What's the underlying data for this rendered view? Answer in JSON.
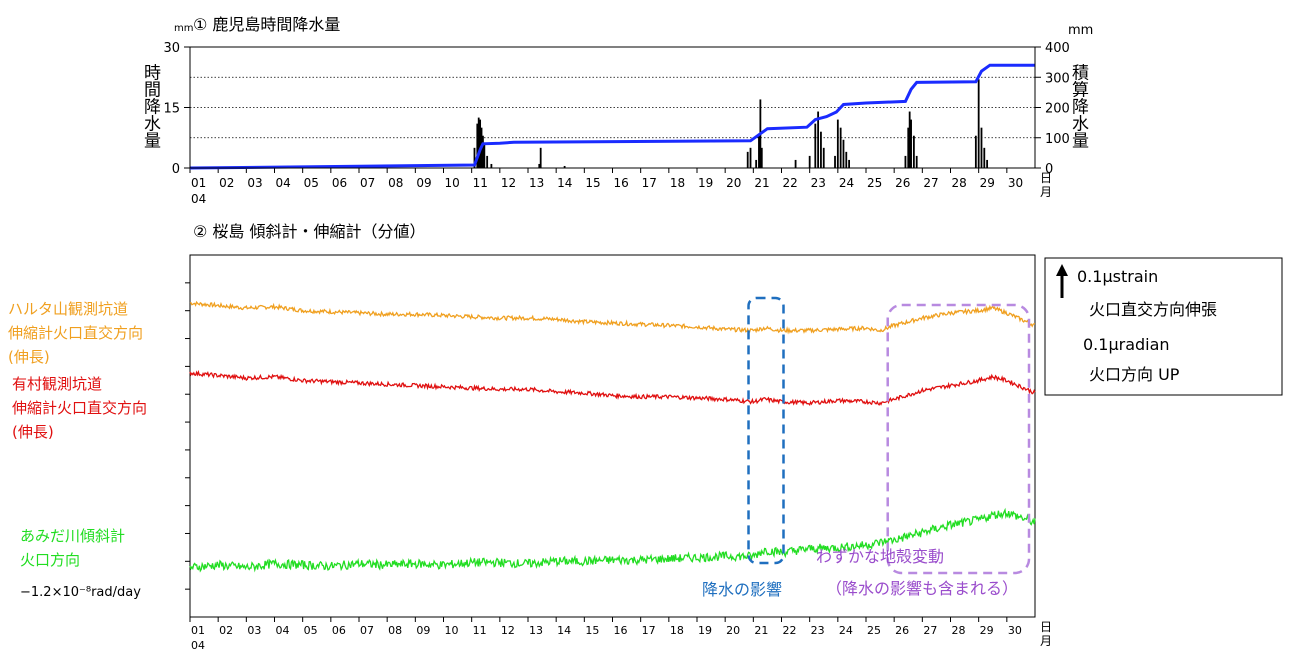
{
  "chart_data": [
    {
      "type": "bar+line",
      "title": "① 鹿児島時間降水量",
      "ylabel_left": "時間降水量",
      "ylabel_right": "積算降水量",
      "unit_left": "mm",
      "unit_right": "mm",
      "ylim_left": [
        0,
        30
      ],
      "ylim_right": [
        0,
        400
      ],
      "yticks_left": [
        0,
        15,
        30
      ],
      "yticks_right": [
        0,
        100,
        200,
        300,
        400
      ],
      "grid": "dotted at 100, 200, 300 (right axis)",
      "x_ticks": [
        "01",
        "02",
        "03",
        "04",
        "05",
        "06",
        "07",
        "08",
        "09",
        "10",
        "11",
        "12",
        "13",
        "14",
        "15",
        "16",
        "17",
        "18",
        "19",
        "20",
        "21",
        "22",
        "23",
        "24",
        "25",
        "26",
        "27",
        "28",
        "29",
        "30"
      ],
      "x_month": "04",
      "x_unit": "日\n月",
      "hourly_bars": [
        {
          "day": 11.1,
          "value": 5
        },
        {
          "day": 11.2,
          "value": 11
        },
        {
          "day": 11.25,
          "value": 12.5
        },
        {
          "day": 11.3,
          "value": 12
        },
        {
          "day": 11.35,
          "value": 10
        },
        {
          "day": 11.4,
          "value": 8
        },
        {
          "day": 11.45,
          "value": 6
        },
        {
          "day": 11.55,
          "value": 3
        },
        {
          "day": 11.7,
          "value": 1
        },
        {
          "day": 13.4,
          "value": 1
        },
        {
          "day": 13.45,
          "value": 5
        },
        {
          "day": 14.3,
          "value": 0.5
        },
        {
          "day": 20.8,
          "value": 4
        },
        {
          "day": 20.9,
          "value": 5
        },
        {
          "day": 21.1,
          "value": 2
        },
        {
          "day": 21.2,
          "value": 8
        },
        {
          "day": 21.25,
          "value": 17
        },
        {
          "day": 21.3,
          "value": 5
        },
        {
          "day": 22.5,
          "value": 2
        },
        {
          "day": 23.0,
          "value": 3
        },
        {
          "day": 23.2,
          "value": 11
        },
        {
          "day": 23.3,
          "value": 14
        },
        {
          "day": 23.4,
          "value": 9
        },
        {
          "day": 23.5,
          "value": 5
        },
        {
          "day": 23.9,
          "value": 3
        },
        {
          "day": 24.0,
          "value": 12
        },
        {
          "day": 24.1,
          "value": 10
        },
        {
          "day": 24.2,
          "value": 7
        },
        {
          "day": 24.3,
          "value": 4
        },
        {
          "day": 24.4,
          "value": 2
        },
        {
          "day": 26.4,
          "value": 3
        },
        {
          "day": 26.5,
          "value": 10
        },
        {
          "day": 26.55,
          "value": 14
        },
        {
          "day": 26.6,
          "value": 12
        },
        {
          "day": 26.7,
          "value": 8
        },
        {
          "day": 26.8,
          "value": 3
        },
        {
          "day": 28.9,
          "value": 8
        },
        {
          "day": 29.0,
          "value": 22
        },
        {
          "day": 29.1,
          "value": 10
        },
        {
          "day": 29.2,
          "value": 5
        },
        {
          "day": 29.3,
          "value": 2
        }
      ],
      "cumulative_line": {
        "color": "#1a2bff",
        "x": [
          1,
          11.1,
          11.3,
          11.4,
          12.0,
          12.5,
          20.9,
          21.2,
          21.5,
          22.9,
          23.2,
          23.6,
          23.95,
          24.2,
          25.0,
          26.4,
          26.6,
          26.8,
          28.9,
          29.1,
          29.4,
          31
        ],
        "y": [
          0,
          10,
          60,
          80,
          82,
          85,
          90,
          110,
          130,
          135,
          160,
          170,
          185,
          210,
          215,
          220,
          260,
          283,
          285,
          320,
          340,
          340
        ]
      }
    },
    {
      "type": "line",
      "title": "② 桜島 傾斜計・伸縮計（分値）",
      "x_ticks": [
        "01",
        "02",
        "03",
        "04",
        "05",
        "06",
        "07",
        "08",
        "09",
        "10",
        "11",
        "12",
        "13",
        "14",
        "15",
        "16",
        "17",
        "18",
        "19",
        "20",
        "21",
        "22",
        "23",
        "24",
        "25",
        "26",
        "27",
        "28",
        "29",
        "30"
      ],
      "x_month": "04",
      "x_unit": "日\n月",
      "scale_box": [
        "0.1μstrain",
        "火口直交方向伸張",
        "0.1μradian",
        "火口方向 UP"
      ],
      "series": [
        {
          "name": "ハルタ山観測坑道\n伸縮計火口直交方向\n(伸長)",
          "color": "#f0a020",
          "x": [
            1,
            2,
            3,
            4,
            5,
            6,
            7,
            8,
            9,
            10,
            11,
            12,
            13,
            14,
            15,
            16,
            17,
            18,
            19,
            20,
            21,
            21.4,
            22,
            23,
            24,
            25,
            25.5,
            26,
            27,
            28,
            29,
            29.5,
            30,
            31
          ],
          "y": [
            1.4,
            1.3,
            1.2,
            1.25,
            1.1,
            1.05,
            1.0,
            0.95,
            0.95,
            0.9,
            0.85,
            0.8,
            0.8,
            0.75,
            0.65,
            0.6,
            0.55,
            0.5,
            0.45,
            0.35,
            0.3,
            0.4,
            0.3,
            0.3,
            0.35,
            0.4,
            0.3,
            0.5,
            0.8,
            1.0,
            1.1,
            1.2,
            1.0,
            0.5
          ]
        },
        {
          "name": "有村観測坑道\n伸縮計火口直交方向\n(伸長)",
          "color": "#e01010",
          "x": [
            1,
            2,
            3,
            4,
            5,
            6,
            7,
            8,
            9,
            10,
            11,
            12,
            13,
            14,
            15,
            16,
            17,
            18,
            19,
            20,
            21,
            21.4,
            22,
            23,
            24,
            25,
            25.5,
            26,
            27,
            28,
            29,
            29.5,
            30,
            31
          ],
          "y": [
            1.0,
            0.9,
            0.8,
            0.85,
            0.7,
            0.65,
            0.6,
            0.55,
            0.5,
            0.45,
            0.4,
            0.35,
            0.35,
            0.25,
            0.2,
            0.1,
            0.05,
            0.05,
            0.0,
            -0.05,
            -0.15,
            -0.05,
            -0.15,
            -0.2,
            -0.1,
            -0.15,
            -0.2,
            -0.05,
            0.3,
            0.5,
            0.7,
            0.85,
            0.7,
            0.2
          ]
        },
        {
          "name": "あみだ川傾斜計\n火口方向",
          "note": "−1.2×10⁻⁸rad/day",
          "color": "#22dd22",
          "x": [
            1,
            2,
            3,
            4,
            5,
            6,
            7,
            8,
            9,
            10,
            11,
            12,
            13,
            14,
            15,
            16,
            17,
            18,
            19,
            20,
            21,
            21.4,
            22,
            23,
            24,
            25,
            25.5,
            26,
            27,
            28,
            29,
            29.5,
            30,
            31
          ],
          "y": [
            -2.3,
            -2.2,
            -2.3,
            -2.15,
            -2.2,
            -2.25,
            -2.15,
            -2.2,
            -2.15,
            -2.2,
            -2.1,
            -2.1,
            -2.15,
            -2.05,
            -2.05,
            -2.0,
            -2.0,
            -1.95,
            -1.9,
            -1.85,
            -1.85,
            -1.6,
            -1.7,
            -1.55,
            -1.5,
            -1.4,
            -1.3,
            -1.2,
            -0.9,
            -0.6,
            -0.4,
            -0.2,
            -0.1,
            -0.5
          ]
        }
      ],
      "annotations": [
        {
          "text": "降水の影響",
          "color": "#1f6fbf",
          "box_days": [
            20.9,
            22.0
          ]
        },
        {
          "text": "わずかな地殻変動",
          "color": "#9a4dcc",
          "box_days": [
            25.7,
            31.0
          ]
        },
        {
          "text": "（降水の影響も含まれる）",
          "color": "#9a4dcc"
        }
      ]
    }
  ]
}
